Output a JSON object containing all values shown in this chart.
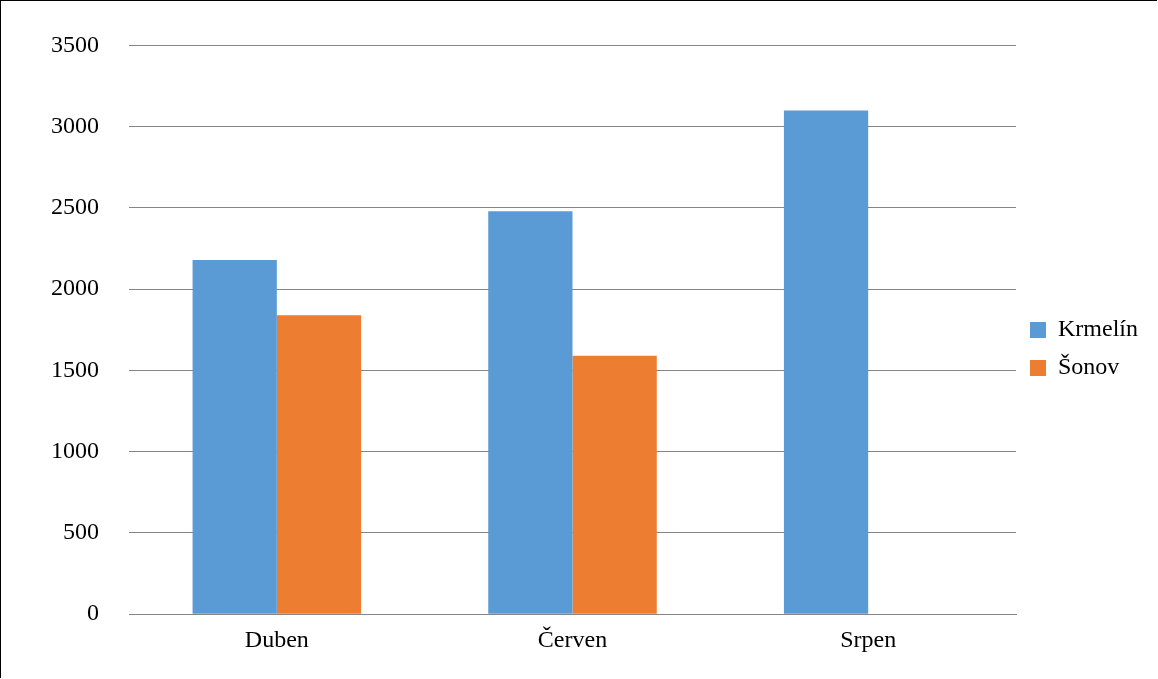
{
  "chart_data": {
    "type": "bar",
    "categories": [
      "Duben",
      "Červen",
      "Srpen"
    ],
    "series": [
      {
        "name": "Krmelín",
        "color": "#5b9bd5",
        "values": [
          2180,
          2480,
          3100
        ]
      },
      {
        "name": "Šonov",
        "color": "#ed7d31",
        "values": [
          1840,
          1590,
          null
        ]
      }
    ],
    "ylim": [
      0,
      3500
    ],
    "yticks": [
      0,
      500,
      1000,
      1500,
      2000,
      2500,
      3000,
      3500
    ],
    "grid": "y",
    "legend": "right"
  }
}
